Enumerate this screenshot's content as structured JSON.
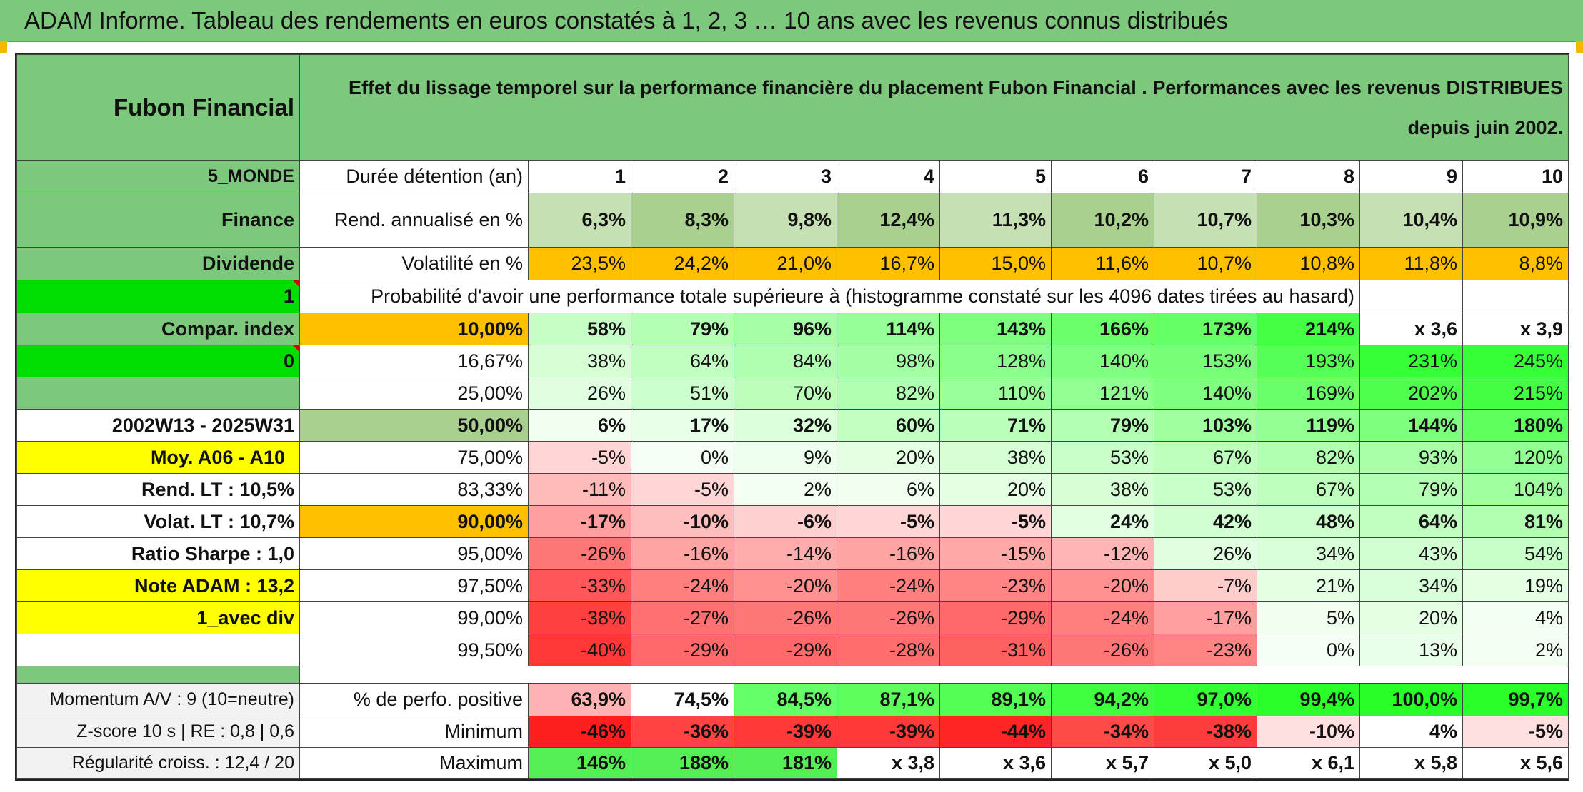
{
  "title": "ADAM Informe. Tableau des rendements en euros constatés à 1, 2, 3 … 10 ans avec les revenus connus distribués",
  "header": {
    "fund": "Fubon Financial",
    "description": "Effet du lissage temporel sur la performance financière du placement Fubon Financial . Performances avec les revenus DISTRIBUES depuis juin 2002."
  },
  "rows": {
    "duree": {
      "side": "5_MONDE",
      "label": "Durée détention (an)",
      "values": [
        "1",
        "2",
        "3",
        "4",
        "5",
        "6",
        "7",
        "8",
        "9",
        "10"
      ]
    },
    "rend": {
      "side": "Finance",
      "label": "Rend. annualisé en %",
      "values": [
        "6,3%",
        "8,3%",
        "9,8%",
        "12,4%",
        "11,3%",
        "10,2%",
        "10,7%",
        "10,3%",
        "10,4%",
        "10,9%"
      ]
    },
    "vol": {
      "side": "Dividende",
      "label": "Volatilité en %",
      "values": [
        "23,5%",
        "24,2%",
        "21,0%",
        "16,7%",
        "15,0%",
        "11,6%",
        "10,7%",
        "10,8%",
        "11,8%",
        "8,8%"
      ]
    },
    "proba": {
      "side": "1",
      "label": "Probabilité d'avoir une performance totale supérieure à (histogramme constaté sur les 4096 dates tirées au hasard)"
    }
  },
  "percentiles": [
    {
      "side": "Compar. index",
      "pct": "10,00%",
      "values": [
        "58%",
        "79%",
        "96%",
        "114%",
        "143%",
        "166%",
        "173%",
        "214%",
        "x 3,6",
        "x 3,9"
      ]
    },
    {
      "side": "0",
      "pct": "16,67%",
      "values": [
        "38%",
        "64%",
        "84%",
        "98%",
        "128%",
        "140%",
        "153%",
        "193%",
        "231%",
        "245%"
      ]
    },
    {
      "side": "",
      "pct": "25,00%",
      "values": [
        "26%",
        "51%",
        "70%",
        "82%",
        "110%",
        "121%",
        "140%",
        "169%",
        "202%",
        "215%"
      ]
    },
    {
      "side": "2002W13 - 2025W31",
      "pct": "50,00%",
      "values": [
        "6%",
        "17%",
        "32%",
        "60%",
        "71%",
        "79%",
        "103%",
        "119%",
        "144%",
        "180%"
      ]
    },
    {
      "side": "Moy. A06 - A10",
      "pct": "75,00%",
      "values": [
        "-5%",
        "0%",
        "9%",
        "20%",
        "38%",
        "53%",
        "67%",
        "82%",
        "93%",
        "120%"
      ]
    },
    {
      "side": "Rend. LT :    10,5%",
      "pct": "83,33%",
      "values": [
        "-11%",
        "-5%",
        "2%",
        "6%",
        "20%",
        "38%",
        "53%",
        "67%",
        "79%",
        "104%"
      ]
    },
    {
      "side": "Volat. LT :    10,7%",
      "pct": "90,00%",
      "values": [
        "-17%",
        "-10%",
        "-6%",
        "-5%",
        "-5%",
        "24%",
        "42%",
        "48%",
        "64%",
        "81%"
      ]
    },
    {
      "side": "Ratio Sharpe :    1,0",
      "pct": "95,00%",
      "values": [
        "-26%",
        "-16%",
        "-14%",
        "-16%",
        "-15%",
        "-12%",
        "26%",
        "34%",
        "43%",
        "54%"
      ]
    },
    {
      "side": "Note ADAM : 13,2",
      "pct": "97,50%",
      "values": [
        "-33%",
        "-24%",
        "-20%",
        "-24%",
        "-23%",
        "-20%",
        "-7%",
        "21%",
        "34%",
        "19%"
      ]
    },
    {
      "side": "1_avec div",
      "pct": "99,00%",
      "values": [
        "-38%",
        "-27%",
        "-26%",
        "-26%",
        "-29%",
        "-24%",
        "-17%",
        "5%",
        "20%",
        "4%"
      ]
    },
    {
      "side": "",
      "pct": "99,50%",
      "values": [
        "-40%",
        "-29%",
        "-29%",
        "-28%",
        "-31%",
        "-26%",
        "-23%",
        "0%",
        "13%",
        "2%"
      ]
    }
  ],
  "footer": [
    {
      "side": "Momentum A/V : 9 (10=neutre)",
      "label": "% de perfo. positive",
      "values": [
        "63,9%",
        "74,5%",
        "84,5%",
        "87,1%",
        "89,1%",
        "94,2%",
        "97,0%",
        "99,4%",
        "100,0%",
        "99,7%"
      ]
    },
    {
      "side": "Z-score 10 s | RE : 0,8 | 0,6",
      "label": "Minimum",
      "values": [
        "-46%",
        "-36%",
        "-39%",
        "-39%",
        "-44%",
        "-34%",
        "-38%",
        "-10%",
        "4%",
        "-5%"
      ]
    },
    {
      "side": "Régularité croiss. : 12,4 / 20",
      "label": "Maximum",
      "values": [
        "146%",
        "188%",
        "181%",
        "x 3,8",
        "x 3,6",
        "x 5,7",
        "x 5,0",
        "x 6,1",
        "x 5,8",
        "x 5,6"
      ]
    }
  ],
  "colors": {
    "title_bg": "#7ec87e",
    "green_label": "#7ec87e",
    "orange": "#ffc000",
    "yellow": "#ffff00",
    "bright_green": "#00dd00",
    "red_text": "#d2141e"
  }
}
